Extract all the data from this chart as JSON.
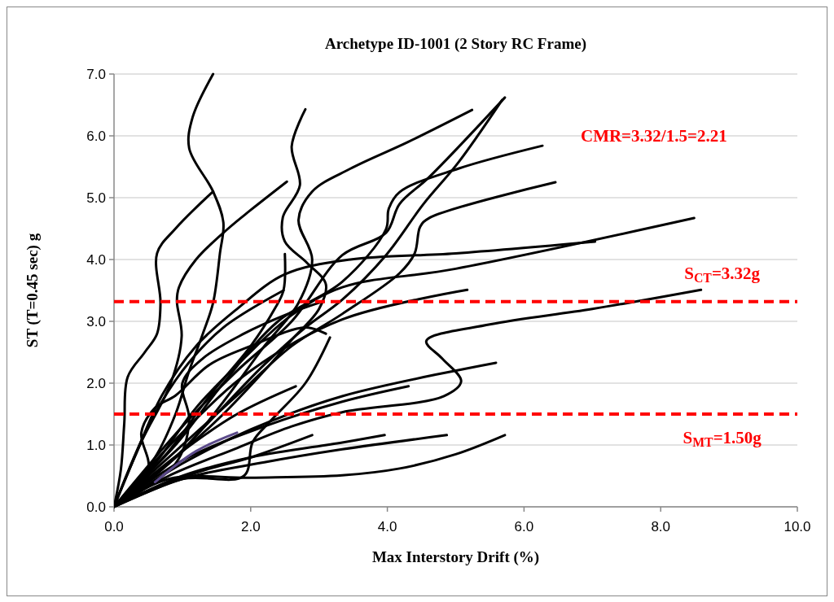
{
  "chart_data": {
    "type": "line",
    "title": "Archetype ID-1001 (2 Story RC Frame)",
    "xlabel": "Max Interstory Drift (%)",
    "ylabel": "ST (T=0.45 sec) g",
    "xlim": [
      0,
      10
    ],
    "ylim": [
      0,
      7
    ],
    "xticks": [
      {
        "value": 0,
        "label": "0.0"
      },
      {
        "value": 2,
        "label": "2.0"
      },
      {
        "value": 4,
        "label": "4.0"
      },
      {
        "value": 6,
        "label": "6.0"
      },
      {
        "value": 8,
        "label": "8.0"
      },
      {
        "value": 10,
        "label": "10.0"
      }
    ],
    "yticks": [
      {
        "value": 0,
        "label": "0.0"
      },
      {
        "value": 1,
        "label": "1.0"
      },
      {
        "value": 2,
        "label": "2.0"
      },
      {
        "value": 3,
        "label": "3.0"
      },
      {
        "value": 4,
        "label": "4.0"
      },
      {
        "value": 5,
        "label": "5.0"
      },
      {
        "value": 6,
        "label": "6.0"
      },
      {
        "value": 7,
        "label": "7.0"
      }
    ],
    "grid": "y",
    "marker": "none",
    "line_style": "solid",
    "series": [
      {
        "color": "#000000",
        "x": [
          0,
          0.6,
          0.9,
          1.1,
          1.3,
          1.45,
          1.55,
          1.6,
          1.45,
          1.1,
          1.15,
          1.45
        ],
        "values": [
          0,
          0.8,
          1.5,
          2.2,
          2.8,
          3.3,
          4.1,
          4.6,
          5.1,
          5.8,
          6.3,
          7.0
        ]
      },
      {
        "color": "#000000",
        "x": [
          0,
          0.1,
          0.15,
          0.2,
          0.45,
          0.63,
          0.68,
          0.63,
          0.9,
          1.45
        ],
        "values": [
          0,
          0.6,
          1.35,
          2.1,
          2.5,
          2.8,
          3.3,
          4.1,
          4.5,
          5.1
        ]
      },
      {
        "color": "#000000",
        "x": [
          0,
          0.4,
          0.83,
          0.99,
          0.92,
          0.95,
          1.2,
          1.67,
          2.0,
          2.53
        ],
        "values": [
          0,
          1.05,
          2.0,
          2.76,
          3.33,
          3.55,
          4.0,
          4.5,
          4.8,
          5.26
        ]
      },
      {
        "color": "#000000",
        "x": [
          0,
          0.9,
          1.6,
          2.2,
          2.6,
          3.0,
          3.1,
          2.82,
          2.5,
          2.47,
          2.72,
          2.6,
          2.8
        ],
        "values": [
          0,
          0.8,
          1.5,
          2.2,
          2.7,
          3.2,
          3.6,
          3.95,
          4.29,
          4.68,
          5.2,
          5.83,
          6.43
        ]
      },
      {
        "color": "#000000",
        "x": [
          0,
          1.0,
          1.6,
          2.2,
          2.7,
          2.9,
          2.7,
          2.9,
          3.46,
          4.3,
          5.24
        ],
        "values": [
          0,
          0.9,
          1.7,
          2.6,
          3.3,
          4.0,
          4.64,
          5.1,
          5.47,
          5.9,
          6.42
        ]
      },
      {
        "color": "#000000",
        "x": [
          0,
          0.8,
          1.5,
          2.2,
          2.8,
          3.34,
          3.98,
          4.53,
          5.04,
          5.68
        ],
        "values": [
          0,
          0.7,
          1.5,
          2.3,
          2.9,
          3.35,
          4.07,
          4.9,
          5.57,
          6.58
        ]
      },
      {
        "color": "#000000",
        "x": [
          0,
          1.0,
          1.8,
          2.6,
          3.34,
          3.98,
          4.18,
          4.61,
          5.72
        ],
        "values": [
          0,
          1.3,
          2.2,
          3.0,
          4.07,
          4.43,
          4.9,
          5.33,
          6.62
        ]
      },
      {
        "color": "#000000",
        "x": [
          0,
          0.9,
          1.6,
          2.4,
          3.34,
          3.98,
          4.02,
          4.18,
          5.04,
          6.27
        ],
        "values": [
          0,
          1.0,
          2.0,
          3.0,
          3.64,
          4.49,
          4.82,
          5.09,
          5.47,
          5.84
        ]
      },
      {
        "color": "#000000",
        "x": [
          0,
          0.9,
          1.8,
          2.6,
          3.34,
          4.18,
          4.4,
          4.48,
          4.61,
          6.46
        ],
        "values": [
          0,
          0.9,
          1.8,
          2.6,
          3.12,
          3.78,
          4.1,
          4.53,
          4.67,
          5.25
        ]
      },
      {
        "color": "#000000",
        "x": [
          0,
          0.6,
          1.2,
          1.9,
          2.6,
          3.34,
          5.0,
          8.49
        ],
        "values": [
          0,
          0.7,
          1.6,
          2.4,
          3.1,
          3.55,
          3.85,
          4.67
        ]
      },
      {
        "color": "#000000",
        "x": [
          0,
          0.3,
          0.7,
          1.2,
          1.8,
          2.5,
          3.46,
          5.0,
          7.04
        ],
        "values": [
          0,
          0.8,
          1.8,
          2.6,
          3.2,
          3.76,
          4.0,
          4.1,
          4.29
        ]
      },
      {
        "color": "#000000",
        "x": [
          0,
          0.8,
          1.8,
          2.6,
          3.34,
          4.83,
          5.08,
          4.8,
          4.57,
          5.5,
          7.0,
          8.59
        ],
        "values": [
          0,
          0.5,
          0.95,
          1.3,
          1.53,
          1.79,
          2.03,
          2.4,
          2.68,
          2.95,
          3.2,
          3.51
        ]
      },
      {
        "color": "#000000",
        "x": [
          0,
          1.0,
          2.0,
          3.34,
          5.17
        ],
        "values": [
          0,
          1.2,
          2.2,
          3.03,
          3.51
        ]
      },
      {
        "color": "#000000",
        "x": [
          0,
          1.0,
          2.0,
          3.34,
          5.59
        ],
        "values": [
          0,
          0.7,
          1.25,
          1.79,
          2.33
        ]
      },
      {
        "color": "#000000",
        "x": [
          0,
          1.0,
          2.2,
          3.34,
          4.31
        ],
        "values": [
          0,
          0.75,
          1.3,
          1.7,
          1.95
        ]
      },
      {
        "color": "#000000",
        "x": [
          0,
          1.0,
          2.0,
          3.34,
          3.96
        ],
        "values": [
          0,
          0.5,
          0.8,
          1.04,
          1.16
        ]
      },
      {
        "color": "#000000",
        "x": [
          0,
          1.0,
          2.2,
          3.34,
          4.87
        ],
        "values": [
          0,
          0.45,
          0.72,
          0.93,
          1.16
        ]
      },
      {
        "color": "#000000",
        "x": [
          0,
          0.8,
          2.0,
          3.34,
          4.18,
          5.0,
          5.72
        ],
        "values": [
          0,
          0.45,
          0.47,
          0.51,
          0.62,
          0.85,
          1.16
        ]
      },
      {
        "color": "#000000",
        "x": [
          0,
          1.2,
          2.0,
          2.9
        ],
        "values": [
          0,
          0.55,
          0.8,
          1.16
        ]
      },
      {
        "color": "#000000",
        "x": [
          0,
          1.0,
          1.9,
          2.03,
          2.3,
          2.8,
          3.16
        ],
        "values": [
          0,
          0.45,
          0.5,
          1.05,
          1.4,
          2.0,
          2.74
        ]
      },
      {
        "color": "#000000",
        "x": [
          0,
          0.8,
          1.4,
          2.0,
          2.35,
          2.48,
          2.5
        ],
        "values": [
          0,
          0.9,
          1.8,
          2.6,
          3.2,
          3.5,
          4.09
        ]
      },
      {
        "color": "#000000",
        "x": [
          0,
          1.0,
          1.8,
          2.66
        ],
        "values": [
          0,
          0.9,
          1.5,
          1.95
        ]
      },
      {
        "color": "#000000",
        "x": [
          0,
          0.5,
          1.0,
          1.6,
          2.48
        ],
        "values": [
          0,
          1.3,
          2.2,
          2.9,
          3.5
        ]
      },
      {
        "color": "#000000",
        "x": [
          0,
          0.5,
          0.4,
          0.6,
          0.9,
          1.4,
          2.0,
          2.8,
          3.1
        ],
        "values": [
          0,
          0.6,
          1.2,
          1.6,
          1.8,
          2.3,
          2.6,
          2.9,
          2.8
        ]
      },
      {
        "color": "#000000",
        "x": [
          0,
          0.9,
          1.1,
          1.0,
          1.3,
          1.9,
          2.5,
          3.0
        ],
        "values": [
          0,
          0.7,
          1.4,
          2.0,
          2.4,
          2.8,
          3.1,
          3.3
        ]
      },
      {
        "color": "#5b4a8a",
        "x": [
          0.6,
          1.2,
          1.8
        ],
        "values": [
          0.4,
          0.9,
          1.2
        ]
      }
    ],
    "ref_lines": [
      {
        "axis": "y",
        "value": 3.32,
        "label": "S$_{CT}$=3.32g",
        "color": "#ff0000",
        "line_style": "dashed"
      },
      {
        "axis": "y",
        "value": 1.5,
        "label": "S$_{MT}$=1.50g",
        "color": "#ff0000",
        "line_style": "dashed"
      }
    ],
    "annotations": [
      "CMR=3.32/1.5=2.21"
    ]
  }
}
